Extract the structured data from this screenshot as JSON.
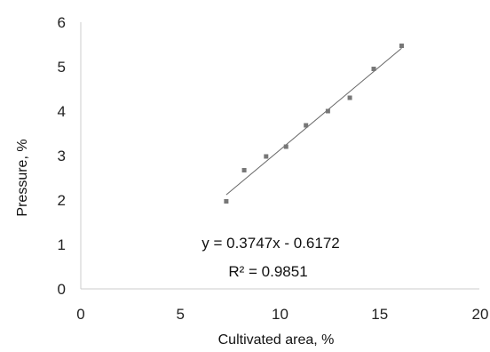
{
  "chart_data": {
    "type": "scatter",
    "xlabel": "Cultivated area, %",
    "ylabel": "Pressure, %",
    "xlim": [
      0,
      20
    ],
    "ylim": [
      0,
      6
    ],
    "xticks": [
      "0",
      "5",
      "10",
      "15",
      "20"
    ],
    "yticks": [
      "0",
      "1",
      "2",
      "3",
      "4",
      "5",
      "6"
    ],
    "grid": false,
    "series": [
      {
        "points": [
          {
            "x": 7.3,
            "y": 1.97
          },
          {
            "x": 8.2,
            "y": 2.67
          },
          {
            "x": 9.3,
            "y": 2.98
          },
          {
            "x": 10.3,
            "y": 3.2
          },
          {
            "x": 11.3,
            "y": 3.68
          },
          {
            "x": 12.4,
            "y": 4.0
          },
          {
            "x": 13.5,
            "y": 4.3
          },
          {
            "x": 14.7,
            "y": 4.95
          },
          {
            "x": 16.1,
            "y": 5.47
          }
        ],
        "marker_color": "#777777"
      }
    ],
    "trendline": {
      "slope": 0.3747,
      "intercept": -0.6172,
      "x_range": [
        7.3,
        16.1
      ],
      "color": "#666666"
    },
    "annotations": {
      "equation": "y = 0.3747x - 0.6172",
      "r_squared": "R² = 0.9851"
    },
    "axis_color": "#cccccc"
  }
}
